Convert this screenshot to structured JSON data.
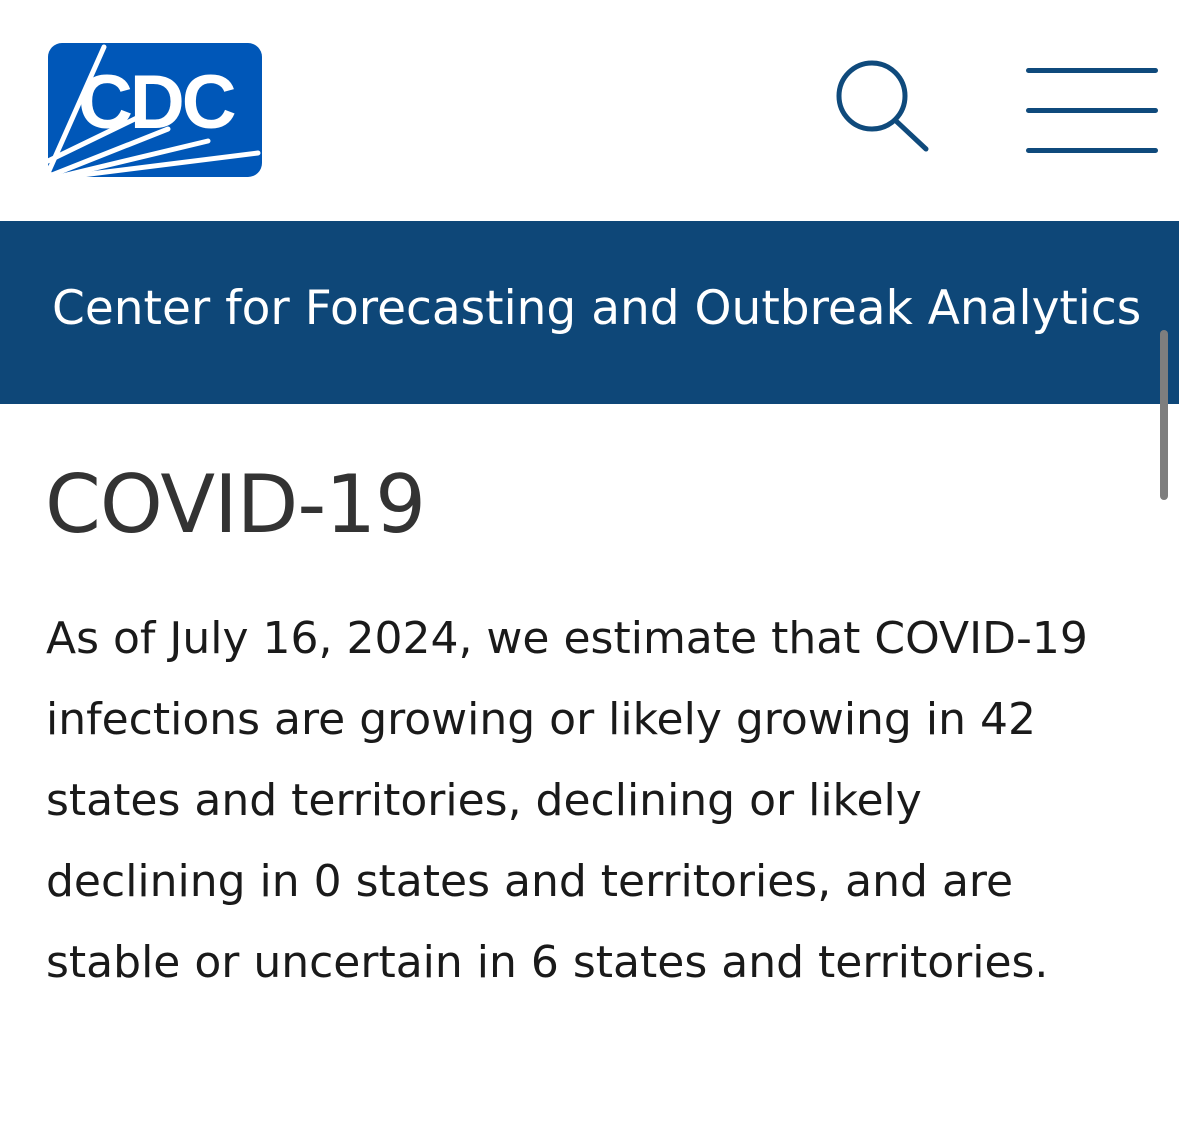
{
  "header": {
    "logo_text": "CDC",
    "search_icon": "search-icon",
    "menu_icon": "hamburger-menu-icon"
  },
  "banner": {
    "title": "Center for Forecasting and Outbreak Analytics"
  },
  "main": {
    "page_title": "COVID-19",
    "summary": "As of July 16, 2024, we estimate that COVID-19 infections are growing or likely growing in 42 states and territories, declining or likely declining in 0 states and territories, and are stable or uncertain in 6 states and territories."
  },
  "colors": {
    "brand_blue": "#0057b8",
    "banner_navy": "#0e4778",
    "icon_navy": "#0f4a7c",
    "title_gray": "#333333",
    "body_text": "#1a1a1a"
  }
}
